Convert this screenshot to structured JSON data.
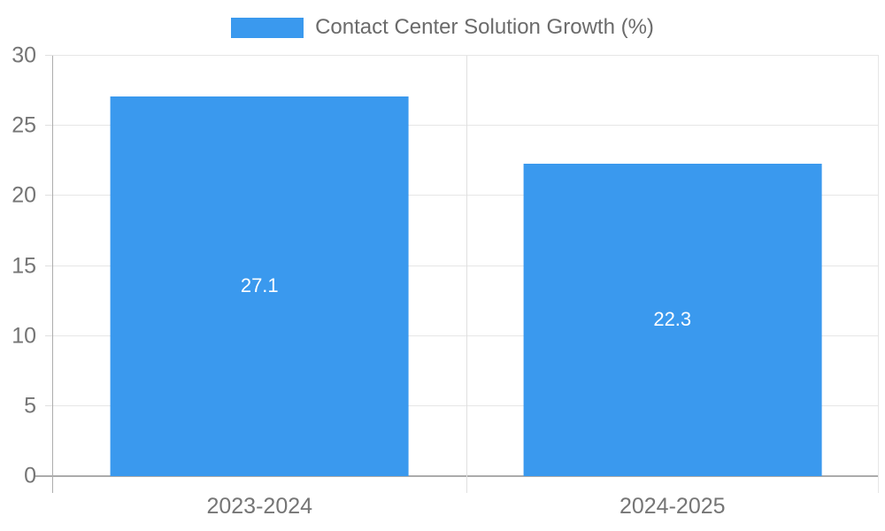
{
  "legend": {
    "label": "Contact Center Solution Growth (%)"
  },
  "colors": {
    "bar_color": "#3a99ee",
    "grid_color": "#e6e6e6",
    "zero_axis_color": "#ababab",
    "axis_line_color": "#adadad",
    "divider_color": "#e0e0e0",
    "tick_label_color": "#757575",
    "legend_text_color": "#6b6b6b",
    "bar_label_color": "#ffffff"
  },
  "chart_data": {
    "type": "bar",
    "title": "Contact Center Solution Growth (%)",
    "categories": [
      "2023-2024",
      "2024-2025"
    ],
    "values": [
      27.1,
      22.3
    ],
    "value_labels": [
      "27.1",
      "22.3"
    ],
    "xlabel": "",
    "ylabel": "",
    "ylim": [
      0,
      30
    ],
    "yticks": [
      0,
      5,
      10,
      15,
      20,
      25,
      30
    ],
    "grid": true,
    "legend_position": "top-center",
    "bar_label_position": "center-inside"
  }
}
